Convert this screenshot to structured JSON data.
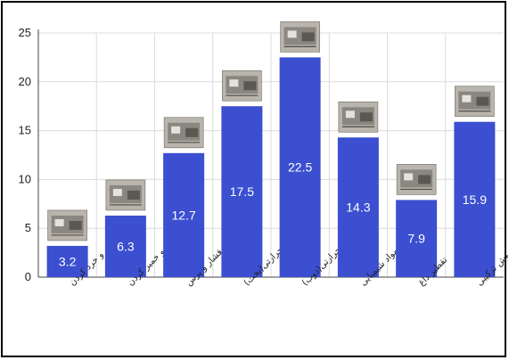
{
  "chart_data": {
    "type": "bar",
    "categories": [
      "برش و خرد کردن",
      "چرخ و خمیر کردن",
      "فشار و پرس",
      "حرارتی(پخت)",
      "حرارتی(ذوب)",
      "استفاده از مواد شیمیایی",
      "تقطیر داغ",
      "روش ترکیبی"
    ],
    "values": [
      3.2,
      6.3,
      12.7,
      17.5,
      22.5,
      14.3,
      7.9,
      15.9
    ],
    "value_labels": [
      "3.2",
      "6.3",
      "12.7",
      "17.5",
      "22.5",
      "14.3",
      "7.9",
      "15.9"
    ],
    "y_ticks": [
      "0",
      "5",
      "10",
      "15",
      "20",
      "25"
    ],
    "ylim": [
      0,
      25
    ],
    "grid": true,
    "bar_color": "#3b4fd0",
    "grid_color": "#dcdcdc",
    "icons": [
      "chopped-material-photo-icon",
      "grinder-photo-icon",
      "press-machine-photo-icon",
      "oven-photo-icon",
      "melting-plant-photo-icon",
      "chemical-tray-photo-icon",
      "distillation-apparatus-photo-icon",
      "combined-machine-photo-icon"
    ]
  }
}
